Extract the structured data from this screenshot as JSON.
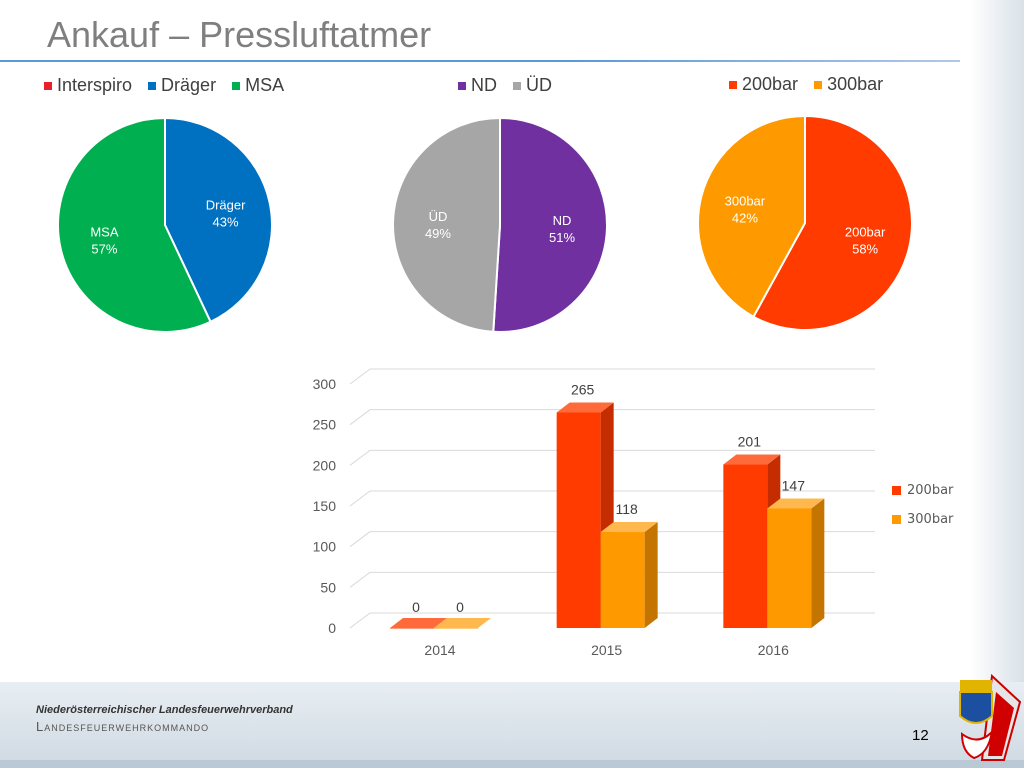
{
  "title": "Ankauf – Pressluftatmer",
  "colors": {
    "interspiro": "#e8202a",
    "draeger": "#0070c0",
    "msa": "#00b050",
    "nd": "#7030a0",
    "ud": "#a6a6a6",
    "bar200": "#ff3b00",
    "bar300": "#ff9900"
  },
  "footer": {
    "org": "Niederösterreichischer Landesfeuerwehrverband",
    "command": "Landesfeuerwehrkommando",
    "page_number": "12"
  },
  "chart_data": [
    {
      "type": "pie",
      "legend": [
        "Interspiro",
        "Dräger",
        "MSA"
      ],
      "slices": [
        {
          "name": "Interspiro",
          "value": 0
        },
        {
          "name": "Dräger",
          "value": 43,
          "label_name": "Dräger",
          "label_pct": "43%"
        },
        {
          "name": "MSA",
          "value": 57,
          "label_name": "MSA",
          "label_pct": "57%"
        }
      ]
    },
    {
      "type": "pie",
      "legend": [
        "ND",
        "ÜD"
      ],
      "slices": [
        {
          "name": "ND",
          "value": 51,
          "label_name": "ND",
          "label_pct": "51%"
        },
        {
          "name": "ÜD",
          "value": 49,
          "label_name": "ÜD",
          "label_pct": "49%"
        }
      ]
    },
    {
      "type": "pie",
      "legend": [
        "200bar",
        "300bar"
      ],
      "slices": [
        {
          "name": "200bar",
          "value": 58,
          "label_name": "200bar",
          "label_pct": "58%"
        },
        {
          "name": "300bar",
          "value": 42,
          "label_name": "300bar",
          "label_pct": "42%"
        }
      ]
    },
    {
      "type": "bar",
      "categories": [
        "2014",
        "2015",
        "2016"
      ],
      "series": [
        {
          "name": "200bar",
          "values": [
            0,
            265,
            201
          ]
        },
        {
          "name": "300bar",
          "values": [
            0,
            118,
            147
          ]
        }
      ],
      "ylim": [
        0,
        300
      ],
      "yticks": [
        "0",
        "50",
        "100",
        "150",
        "200",
        "250",
        "300"
      ],
      "grid": true,
      "legend_position": "right"
    }
  ]
}
